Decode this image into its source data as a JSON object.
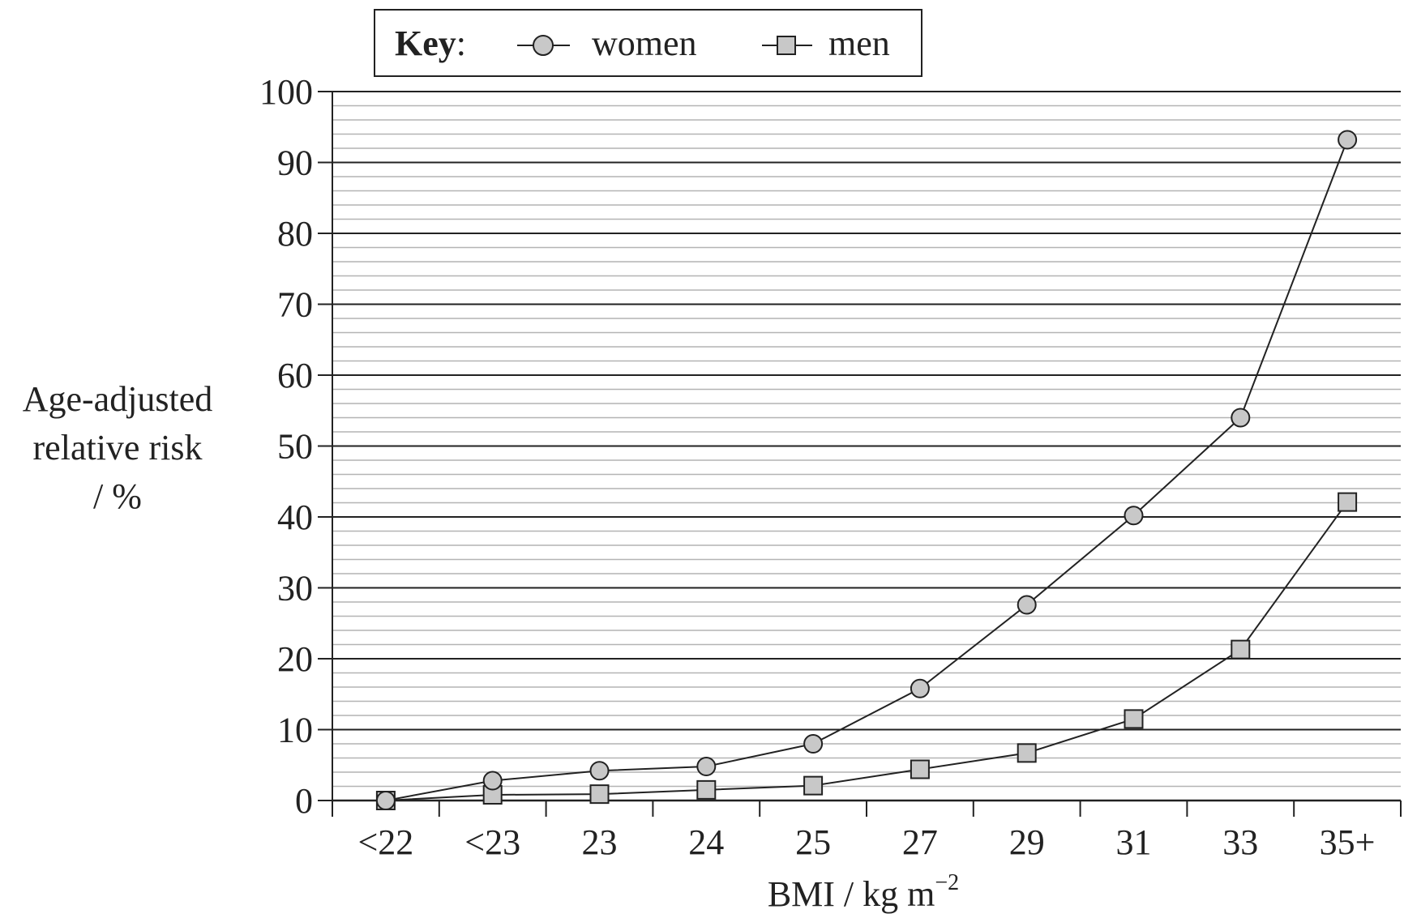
{
  "chart_data": {
    "type": "line",
    "categories": [
      "<22",
      "<23",
      "23",
      "24",
      "25",
      "27",
      "29",
      "31",
      "33",
      "35+"
    ],
    "series": [
      {
        "name": "women",
        "marker": "circle",
        "values": [
          0,
          2.8,
          4.2,
          4.8,
          8,
          15.8,
          27.6,
          40.2,
          54,
          93.2
        ]
      },
      {
        "name": "men",
        "marker": "square",
        "values": [
          0,
          0.8,
          0.9,
          1.5,
          2.1,
          4.4,
          6.7,
          11.5,
          21.3,
          42.1
        ]
      }
    ],
    "xlabel": "BMI / kg m",
    "xlabel_superscript": "−2",
    "ylabel_lines": [
      "Age-adjusted",
      "relative risk",
      "/ %"
    ],
    "ylim": [
      0,
      100
    ],
    "y_major_step": 10,
    "y_minor_step": 2,
    "yticks": [
      "0",
      "10",
      "20",
      "30",
      "40",
      "50",
      "60",
      "70",
      "80",
      "90",
      "100"
    ],
    "grid": true,
    "legend": {
      "title": "Key",
      "title_suffix": ":",
      "placement": "top-center"
    },
    "colors": {
      "marker_fill": "#c8c8c8",
      "line": "#222222",
      "major_grid": "#222222",
      "minor_grid": "#b4b4b4"
    }
  }
}
